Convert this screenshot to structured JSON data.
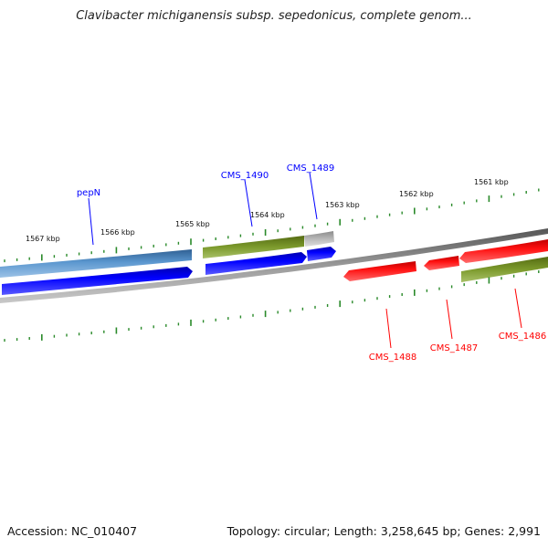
{
  "title": "Clavibacter michiganensis subsp. sepedonicus, complete genom...",
  "ticks": [
    {
      "label": "1567 kbp"
    },
    {
      "label": "1566 kbp"
    },
    {
      "label": "1565 kbp"
    },
    {
      "label": "1564 kbp"
    },
    {
      "label": "1563 kbp"
    },
    {
      "label": "1562 kbp"
    },
    {
      "label": "1561 kbp"
    }
  ],
  "genes_forward": [
    {
      "name": "pepN",
      "color": "#0000ff"
    },
    {
      "name": "CMS_1490",
      "color": "#0000ff"
    },
    {
      "name": "CMS_1489",
      "color": "#0000ff"
    }
  ],
  "genes_reverse": [
    {
      "name": "CMS_1488",
      "color": "#ff0000"
    },
    {
      "name": "CMS_1487",
      "color": "#ff0000"
    },
    {
      "name": "CMS_1486",
      "color": "#ff0000"
    }
  ],
  "colors": {
    "forward_strand": "#0000ff",
    "reverse_strand": "#ff0000",
    "cds_blue": "#4a86c0",
    "cds_green": "#6e8b22",
    "cds_gray": "#b8b8b8",
    "ticks": "#2a8a2a",
    "backbone": "#7a7a7a"
  },
  "footer": {
    "accession": "Accession: NC_010407",
    "summary": "Topology: circular; Length: 3,258,645 bp; Genes: 2,991"
  }
}
